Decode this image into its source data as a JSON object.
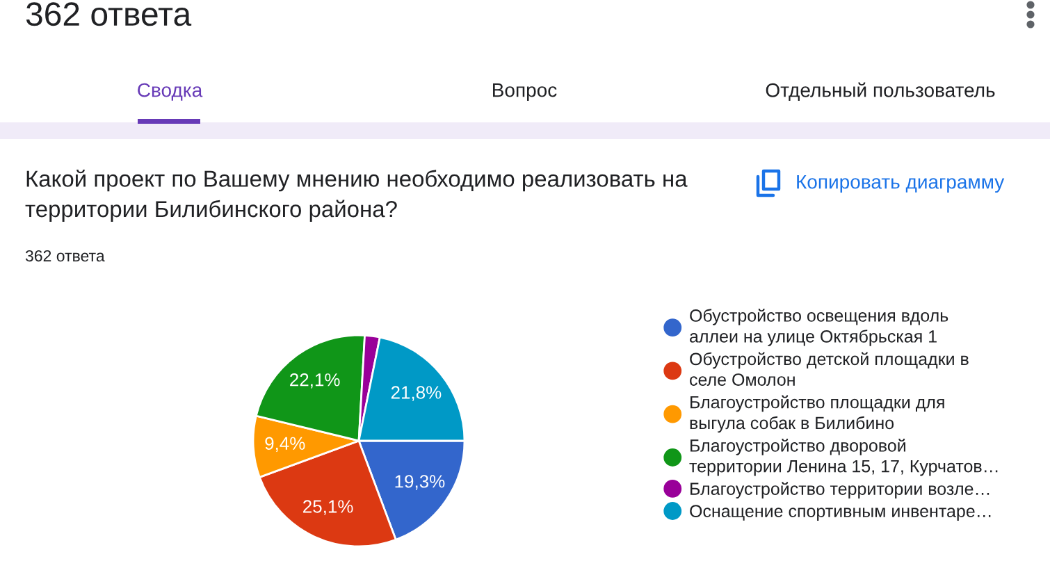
{
  "chart_data": {
    "type": "pie",
    "title": "Какой проект по Вашему мнению необходимо реализовать на\nтерритории Билибинского района?",
    "subtitle": "362 ответа",
    "categories": [
      "Обустройство освещения вдоль\nаллеи на улице Октябрьская 1",
      "Обустройство детской площадки в\nселе Омолон",
      "Благоустройство площадки для\nвыгула собак в Билибино",
      "Благоустройство дворовой\nтерритории Ленина 15, 17, Курчатов…",
      "Благоустройство территории возле…",
      "Оснащение спортивным инвентаре…"
    ],
    "values": [
      19.3,
      25.1,
      9.4,
      22.1,
      2.3,
      21.8
    ],
    "colors": [
      "#3366cc",
      "#dc3912",
      "#ff9900",
      "#109618",
      "#990099",
      "#0099c6"
    ],
    "value_labels": [
      "19,3%",
      "25,1%",
      "9,4%",
      "22,1%",
      null,
      "21,8%"
    ],
    "legend": "right",
    "annotations": [
      "362 ответа",
      "Сводка",
      "Вопрос",
      "Отдельный пользователь",
      "Копировать диаграмму"
    ]
  }
}
